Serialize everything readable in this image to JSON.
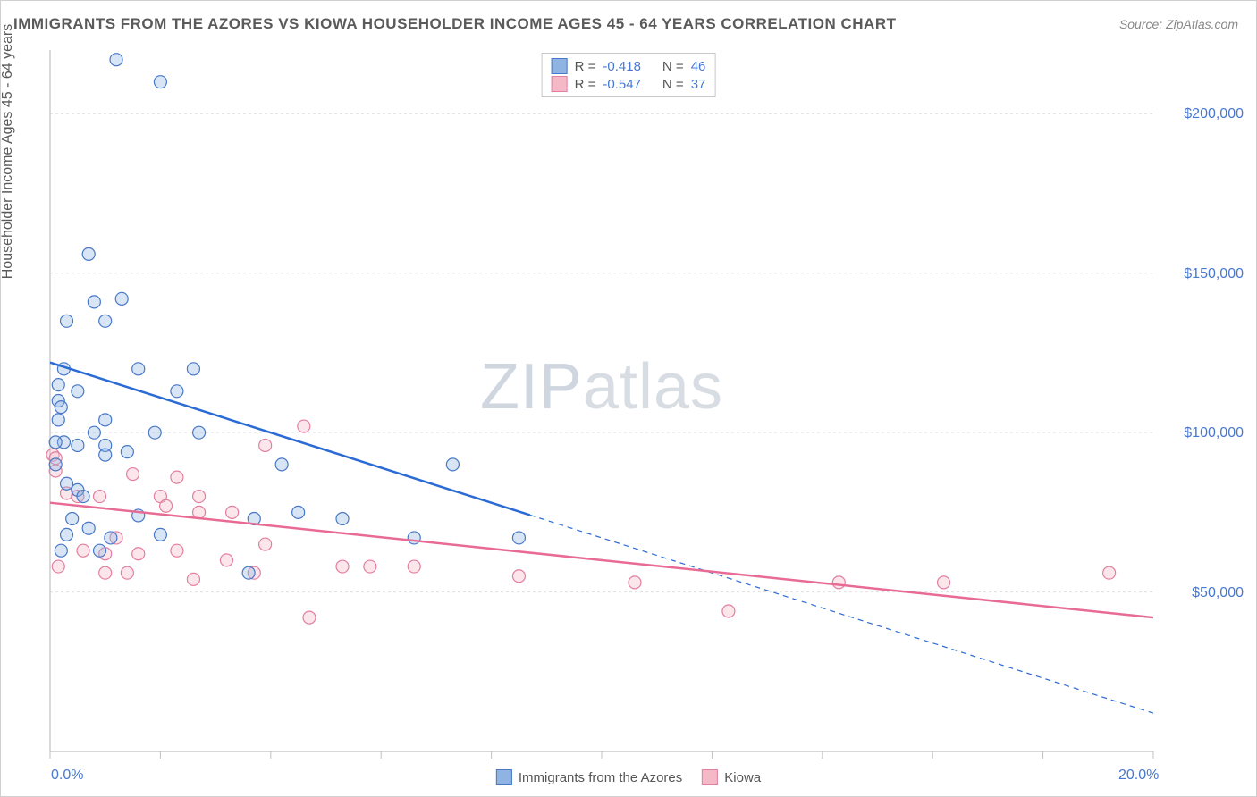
{
  "title": "IMMIGRANTS FROM THE AZORES VS KIOWA HOUSEHOLDER INCOME AGES 45 - 64 YEARS CORRELATION CHART",
  "source_label": "Source: ",
  "source_name": "ZipAtlas.com",
  "yaxis_label": "Householder Income Ages 45 - 64 years",
  "watermark_bold": "ZIP",
  "watermark_light": "atlas",
  "chart": {
    "type": "scatter",
    "background_color": "#ffffff",
    "grid_color": "#e0e0e0",
    "axis_color": "#c0c0c0",
    "xlim": [
      0,
      20
    ],
    "ylim": [
      0,
      220000
    ],
    "x_ticks": [
      0,
      2,
      4,
      6,
      8,
      10,
      12,
      14,
      16,
      18,
      20
    ],
    "x_tick_labels_shown": {
      "0": "0.0%",
      "20": "20.0%"
    },
    "y_gridlines": [
      50000,
      100000,
      150000,
      200000
    ],
    "y_tick_labels": {
      "50000": "$50,000",
      "100000": "$100,000",
      "150000": "$150,000",
      "200000": "$200,000"
    },
    "marker_radius": 7,
    "marker_stroke_width": 1.2,
    "marker_fill_opacity": 0.35,
    "line_width": 2.5,
    "dash_pattern": "6,5",
    "series": [
      {
        "name": "Immigrants from the Azores",
        "color_fill": "#8fb4e3",
        "color_stroke": "#4878c8",
        "line_color": "#2b6bd4",
        "R": "-0.418",
        "N": "46",
        "points": [
          [
            1.2,
            217000
          ],
          [
            2.0,
            210000
          ],
          [
            0.7,
            156000
          ],
          [
            0.8,
            141000
          ],
          [
            1.3,
            142000
          ],
          [
            0.3,
            135000
          ],
          [
            1.0,
            135000
          ],
          [
            2.6,
            120000
          ],
          [
            1.6,
            120000
          ],
          [
            0.25,
            120000
          ],
          [
            2.3,
            113000
          ],
          [
            0.5,
            113000
          ],
          [
            0.15,
            110000
          ],
          [
            0.2,
            108000
          ],
          [
            0.15,
            104000
          ],
          [
            1.0,
            104000
          ],
          [
            0.8,
            100000
          ],
          [
            1.9,
            100000
          ],
          [
            2.7,
            100000
          ],
          [
            0.25,
            97000
          ],
          [
            0.1,
            97000
          ],
          [
            1.0,
            96000
          ],
          [
            0.5,
            96000
          ],
          [
            1.4,
            94000
          ],
          [
            1.0,
            93000
          ],
          [
            0.1,
            90000
          ],
          [
            4.2,
            90000
          ],
          [
            0.3,
            84000
          ],
          [
            0.5,
            82000
          ],
          [
            0.6,
            80000
          ],
          [
            7.3,
            90000
          ],
          [
            4.5,
            75000
          ],
          [
            3.7,
            73000
          ],
          [
            5.3,
            73000
          ],
          [
            6.6,
            67000
          ],
          [
            8.5,
            67000
          ],
          [
            3.6,
            56000
          ],
          [
            0.2,
            63000
          ],
          [
            0.3,
            68000
          ],
          [
            0.7,
            70000
          ],
          [
            1.6,
            74000
          ],
          [
            2.0,
            68000
          ],
          [
            0.9,
            63000
          ],
          [
            1.1,
            67000
          ],
          [
            0.4,
            73000
          ],
          [
            0.15,
            115000
          ]
        ],
        "trend": {
          "x1": 0,
          "y1": 122000,
          "x2": 20,
          "y2": 12000,
          "solid_until_x": 8.7
        }
      },
      {
        "name": "Kiowa",
        "color_fill": "#f4b8c6",
        "color_stroke": "#e37fa0",
        "line_color": "#e86b94",
        "R": "-0.547",
        "N": "37",
        "points": [
          [
            0.05,
            93000
          ],
          [
            0.1,
            92000
          ],
          [
            0.1,
            88000
          ],
          [
            4.6,
            102000
          ],
          [
            0.3,
            81000
          ],
          [
            0.5,
            80000
          ],
          [
            1.5,
            87000
          ],
          [
            2.3,
            86000
          ],
          [
            0.9,
            80000
          ],
          [
            2.0,
            80000
          ],
          [
            2.7,
            80000
          ],
          [
            2.1,
            77000
          ],
          [
            2.7,
            75000
          ],
          [
            3.3,
            75000
          ],
          [
            3.9,
            96000
          ],
          [
            1.2,
            67000
          ],
          [
            0.6,
            63000
          ],
          [
            1.0,
            62000
          ],
          [
            1.6,
            62000
          ],
          [
            2.3,
            63000
          ],
          [
            3.2,
            60000
          ],
          [
            3.9,
            65000
          ],
          [
            0.15,
            58000
          ],
          [
            1.0,
            56000
          ],
          [
            1.4,
            56000
          ],
          [
            3.7,
            56000
          ],
          [
            5.3,
            58000
          ],
          [
            5.8,
            58000
          ],
          [
            6.6,
            58000
          ],
          [
            8.5,
            55000
          ],
          [
            10.6,
            53000
          ],
          [
            12.3,
            44000
          ],
          [
            14.3,
            53000
          ],
          [
            16.2,
            53000
          ],
          [
            19.2,
            56000
          ],
          [
            4.7,
            42000
          ],
          [
            2.6,
            54000
          ]
        ],
        "trend": {
          "x1": 0,
          "y1": 78000,
          "x2": 20,
          "y2": 42000,
          "solid_until_x": 20
        }
      }
    ],
    "legend_series_label_1": "Immigrants from the Azores",
    "legend_series_label_2": "Kiowa",
    "legend_r_prefix": "R =",
    "legend_n_prefix": "N ="
  }
}
